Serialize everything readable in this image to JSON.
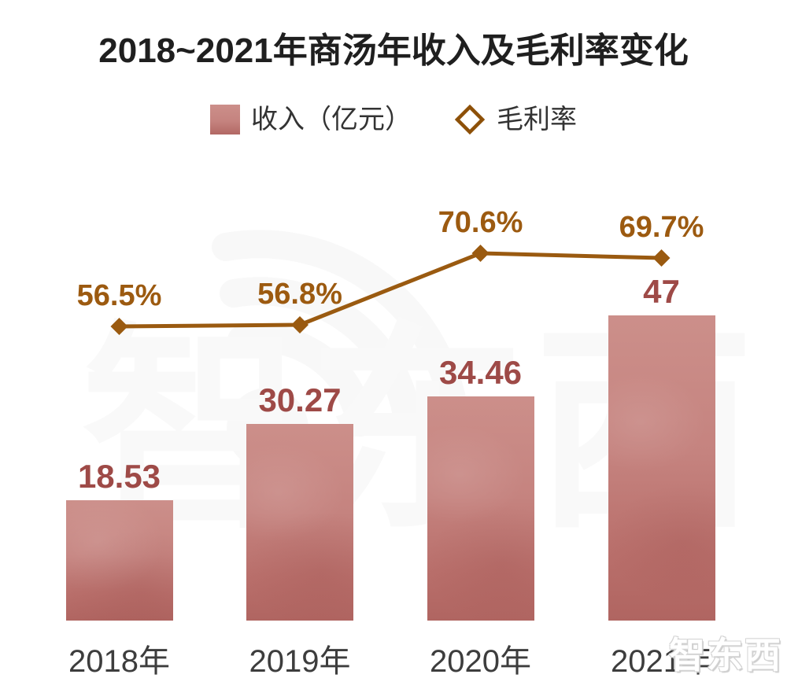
{
  "title": {
    "text": "2018~2021年商汤年收入及毛利率变化"
  },
  "legend": [
    {
      "icon": "bar-swatch",
      "label": "收入（亿元）"
    },
    {
      "icon": "diamond-outline",
      "label": "毛利率"
    }
  ],
  "watermark": {
    "center_text": "智东西",
    "corner_text": "智东西"
  },
  "colors": {
    "title": "#1f1f1f",
    "legend_text": "#333333",
    "bar_top": "#cc8f8a",
    "bar_bottom": "#b06561",
    "bar_value_label": "#9e4a47",
    "line": "#9a5a10",
    "pct_label": "#9c5a10",
    "diamond_stroke": "#8d5008",
    "axis_label": "#3d3d3d",
    "watermark": "#f8f8f8"
  },
  "chart_data": {
    "type": "bar",
    "subtype": "bar+line-combo",
    "categories": [
      "2018年",
      "2019年",
      "2020年",
      "2021年"
    ],
    "series": [
      {
        "name": "收入（亿元）",
        "type": "bar",
        "values": [
          18.53,
          30.27,
          34.46,
          47
        ],
        "labels": [
          "18.53",
          "30.27",
          "34.46",
          "47"
        ]
      },
      {
        "name": "毛利率",
        "type": "line",
        "marker": "diamond",
        "values": [
          56.5,
          56.8,
          70.6,
          69.7
        ],
        "labels": [
          "56.5%",
          "56.8%",
          "70.6%",
          "69.7%"
        ]
      }
    ],
    "title": "2018~2021年商汤年收入及毛利率变化",
    "xlabel": "",
    "ylabel": "",
    "grid": false,
    "legend_position": "top",
    "value_labels_shown": true,
    "axes_shown": false
  }
}
